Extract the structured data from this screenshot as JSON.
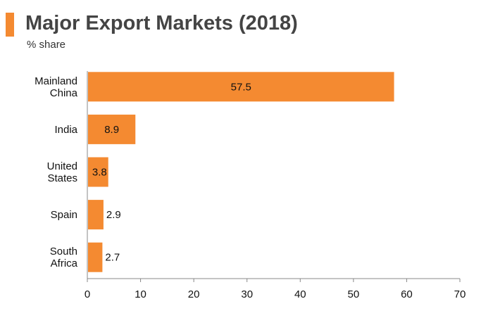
{
  "header": {
    "title": "Major Export Markets (2018)",
    "subtitle": "% share"
  },
  "colors": {
    "accent": "#F48A31",
    "bar": "#F48A31",
    "axis": "#888888",
    "text": "#111111"
  },
  "chart_data": {
    "type": "bar",
    "orientation": "horizontal",
    "categories": [
      [
        "Mainland",
        "China"
      ],
      [
        "India"
      ],
      [
        "United",
        "States"
      ],
      [
        "Spain"
      ],
      [
        "South",
        "Africa"
      ]
    ],
    "values": [
      57.5,
      8.9,
      3.8,
      2.9,
      2.7
    ],
    "value_labels": [
      "57.5",
      "8.9",
      "3.8",
      "2.9",
      "2.7"
    ],
    "xlim": [
      0,
      70
    ],
    "xticks": [
      0,
      10,
      20,
      30,
      40,
      50,
      60,
      70
    ],
    "grid": false,
    "legend": "none"
  }
}
